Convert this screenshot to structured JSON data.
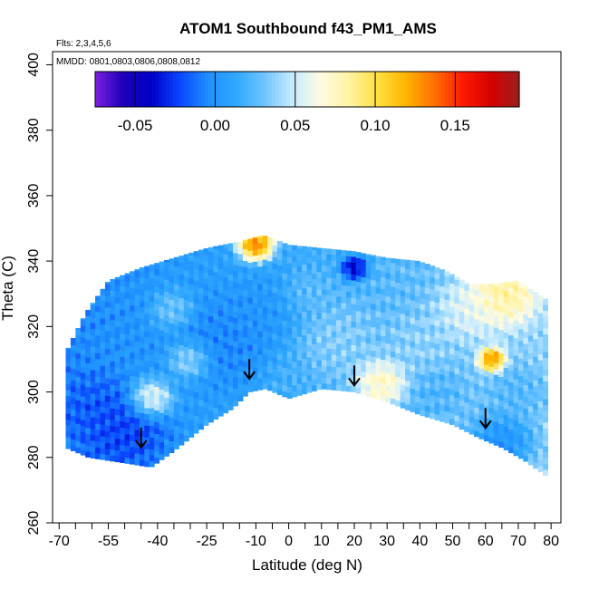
{
  "chart_data": {
    "type": "heatmap",
    "title": "ATOM1 Southbound f43_PM1_AMS",
    "flights_note": "Flts: 2,3,4,5,6",
    "dates_note": "MMDD: 0801,0803,0806,0808,0812",
    "xlabel": "Latitude (deg N)",
    "ylabel": "Theta (C)",
    "xlim": [
      -72,
      83
    ],
    "ylim": [
      260,
      404
    ],
    "x_ticks": [
      -70,
      -65,
      -60,
      -55,
      -50,
      -45,
      -40,
      -35,
      -30,
      -25,
      -20,
      -15,
      -10,
      -5,
      0,
      5,
      10,
      15,
      20,
      25,
      30,
      35,
      40,
      45,
      50,
      55,
      60,
      65,
      70,
      75,
      80
    ],
    "x_tick_labels": [
      "-70",
      "-55",
      "-40",
      "-25",
      "-10",
      "0",
      "10",
      "20",
      "30",
      "40",
      "50",
      "60",
      "70",
      "80"
    ],
    "x_tick_label_values": [
      -70,
      -55,
      -40,
      -25,
      -10,
      0,
      10,
      20,
      30,
      40,
      50,
      60,
      70,
      80
    ],
    "y_tick_labels": [
      "260",
      "280",
      "300",
      "320",
      "340",
      "360",
      "380",
      "400"
    ],
    "y_ticks": [
      260,
      280,
      300,
      320,
      340,
      360,
      380,
      400
    ],
    "colorbar": {
      "range": [
        -0.075,
        0.19
      ],
      "tick_values": [
        -0.05,
        0.0,
        0.05,
        0.1,
        0.15
      ],
      "tick_labels": [
        "-0.05",
        "0.00",
        "0.05",
        "0.10",
        "0.15"
      ],
      "colors": [
        "#7b20e0",
        "#1c00b8",
        "#0000c8",
        "#0a46ff",
        "#1e90ff",
        "#30a8ff",
        "#70c4ff",
        "#c8ecff",
        "#fffbe0",
        "#fff2a0",
        "#ffe040",
        "#ffb300",
        "#ff7000",
        "#ff1a00",
        "#d40000",
        "#9b1f1f"
      ]
    },
    "field": {
      "lat_min": -68,
      "lat_max": 79,
      "theta_floor": [
        [
          -68,
          283
        ],
        [
          -61,
          280
        ],
        [
          -48,
          278
        ],
        [
          -42,
          277
        ],
        [
          -35,
          282
        ],
        [
          -25,
          290
        ],
        [
          -17,
          295
        ],
        [
          -12,
          300
        ],
        [
          -7,
          301
        ],
        [
          0,
          298
        ],
        [
          10,
          301
        ],
        [
          20,
          300
        ],
        [
          30,
          297
        ],
        [
          40,
          293
        ],
        [
          50,
          290
        ],
        [
          58,
          286
        ],
        [
          65,
          283
        ],
        [
          72,
          279
        ],
        [
          79,
          274
        ]
      ],
      "theta_ceiling": [
        [
          -68,
          312
        ],
        [
          -62,
          324
        ],
        [
          -55,
          334
        ],
        [
          -45,
          338
        ],
        [
          -35,
          341
        ],
        [
          -25,
          344
        ],
        [
          -15,
          346
        ],
        [
          -8,
          348
        ],
        [
          0,
          345
        ],
        [
          10,
          344
        ],
        [
          20,
          343
        ],
        [
          30,
          341
        ],
        [
          40,
          340
        ],
        [
          48,
          337
        ],
        [
          55,
          333
        ],
        [
          62,
          333
        ],
        [
          70,
          334
        ],
        [
          79,
          328
        ]
      ],
      "blobs": [
        {
          "lat": -50,
          "theta": 288,
          "value": -0.03,
          "radius": 10
        },
        {
          "lat": -60,
          "theta": 296,
          "value": -0.02,
          "radius": 8
        },
        {
          "lat": -42,
          "theta": 298,
          "value": 0.08,
          "radius": 5
        },
        {
          "lat": -20,
          "theta": 315,
          "value": -0.01,
          "radius": 12
        },
        {
          "lat": -8,
          "theta": 326,
          "value": 0.0,
          "radius": 10
        },
        {
          "lat": -10,
          "theta": 345,
          "value": 0.17,
          "radius": 4
        },
        {
          "lat": 20,
          "theta": 338,
          "value": -0.06,
          "radius": 3
        },
        {
          "lat": 5,
          "theta": 330,
          "value": 0.03,
          "radius": 6
        },
        {
          "lat": 15,
          "theta": 315,
          "value": 0.04,
          "radius": 10
        },
        {
          "lat": 28,
          "theta": 303,
          "value": 0.09,
          "radius": 6
        },
        {
          "lat": 40,
          "theta": 315,
          "value": 0.04,
          "radius": 8
        },
        {
          "lat": 55,
          "theta": 325,
          "value": 0.06,
          "radius": 8
        },
        {
          "lat": 65,
          "theta": 330,
          "value": 0.1,
          "radius": 8
        },
        {
          "lat": 62,
          "theta": 310,
          "value": 0.16,
          "radius": 3
        },
        {
          "lat": 70,
          "theta": 300,
          "value": 0.02,
          "radius": 7
        },
        {
          "lat": 65,
          "theta": 285,
          "value": -0.01,
          "radius": 7
        },
        {
          "lat": -30,
          "theta": 310,
          "value": 0.06,
          "radius": 5
        },
        {
          "lat": 45,
          "theta": 300,
          "value": 0.02,
          "radius": 6
        },
        {
          "lat": 0,
          "theta": 305,
          "value": 0.02,
          "radius": 6
        },
        {
          "lat": -35,
          "theta": 325,
          "value": 0.04,
          "radius": 5
        }
      ]
    },
    "tropopause_arrows": [
      {
        "lat": -45,
        "theta": 283
      },
      {
        "lat": -12,
        "theta": 304
      },
      {
        "lat": 20,
        "theta": 302
      },
      {
        "lat": 60,
        "theta": 289
      }
    ]
  }
}
